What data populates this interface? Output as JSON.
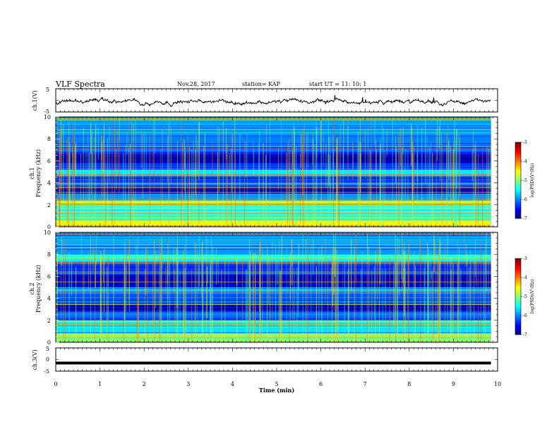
{
  "header": {
    "title": "VLF Spectra",
    "date": "Nov.28, 2017",
    "station": "station= KAP",
    "start_ut": "start  UT =   11: 10: 1"
  },
  "chart_data": [
    {
      "type": "line",
      "panel": "ch1-waveform",
      "ylabel": "ch.1(V)",
      "ylim": [
        -5,
        5
      ],
      "yticks": [
        "5",
        "-5"
      ],
      "xlim": [
        0,
        10
      ],
      "series_shape": "noisy trace around -0.5 V spanning 0 to 9.85 min"
    },
    {
      "type": "heatmap",
      "panel": "ch1-spectrogram",
      "ylabel": "ch.1\nFrequency (kHz)",
      "ylim": [
        0,
        10
      ],
      "yticks": [
        "0",
        "2",
        "4",
        "6",
        "8",
        "10"
      ],
      "xlim": [
        0,
        10
      ],
      "data_end_min": 9.85,
      "bands_khz": [
        {
          "range": [
            0.0,
            0.6
          ],
          "level": -4.6
        },
        {
          "range": [
            0.6,
            2.0
          ],
          "level": -5.3
        },
        {
          "range": [
            2.0,
            2.4
          ],
          "level": -4.4
        },
        {
          "range": [
            2.4,
            3.0
          ],
          "level": -5.9
        },
        {
          "range": [
            3.0,
            3.6
          ],
          "level": -6.8
        },
        {
          "range": [
            3.6,
            4.6
          ],
          "level": -6.2
        },
        {
          "range": [
            4.6,
            5.2
          ],
          "level": -5.6
        },
        {
          "range": [
            5.2,
            5.8
          ],
          "level": -6.3
        },
        {
          "range": [
            5.8,
            6.6
          ],
          "level": -6.8
        },
        {
          "range": [
            6.6,
            7.4
          ],
          "level": -6.3
        },
        {
          "range": [
            7.4,
            8.2
          ],
          "level": -6.0
        },
        {
          "range": [
            8.2,
            10.0
          ],
          "level": -5.9
        }
      ]
    },
    {
      "type": "heatmap",
      "panel": "ch2-spectrogram",
      "ylabel": "ch.2\nFrequency (kHz)",
      "ylim": [
        0,
        10
      ],
      "yticks": [
        "0",
        "2",
        "4",
        "6",
        "8",
        "10"
      ],
      "xlim": [
        0,
        10
      ],
      "data_end_min": 9.85,
      "bands_khz": [
        {
          "range": [
            0.0,
            0.8
          ],
          "level": -4.9
        },
        {
          "range": [
            0.8,
            2.0
          ],
          "level": -5.6
        },
        {
          "range": [
            2.0,
            2.8
          ],
          "level": -6.1
        },
        {
          "range": [
            2.8,
            3.4
          ],
          "level": -6.8
        },
        {
          "range": [
            3.4,
            4.4
          ],
          "level": -6.2
        },
        {
          "range": [
            4.4,
            5.0
          ],
          "level": -5.8
        },
        {
          "range": [
            5.0,
            6.2
          ],
          "level": -6.7
        },
        {
          "range": [
            6.2,
            7.3
          ],
          "level": -6.3
        },
        {
          "range": [
            7.3,
            8.0
          ],
          "level": -5.4
        },
        {
          "range": [
            8.0,
            10.0
          ],
          "level": -5.9
        }
      ]
    },
    {
      "type": "line",
      "panel": "ch3-waveform",
      "ylabel": "ch.3(V)",
      "ylim": [
        -5,
        5
      ],
      "yticks": [
        "5",
        "0",
        "-5"
      ],
      "xlim": [
        0,
        10
      ],
      "series": [
        {
          "values": [
            -1.5,
            -1.5
          ]
        }
      ],
      "series_x": [
        0,
        9.85
      ]
    }
  ],
  "x_axis": {
    "label": "Time (min)",
    "ticks": [
      "0",
      "1",
      "2",
      "3",
      "4",
      "5",
      "6",
      "7",
      "8",
      "9",
      "10"
    ],
    "range": [
      0,
      10
    ]
  },
  "colorbar": {
    "label": "log(PSD)(V²/Hz)",
    "range": [
      -7,
      -3
    ],
    "ticks": [
      "-3",
      "-4",
      "-5",
      "-6",
      "-7"
    ],
    "colormap": "jet"
  }
}
